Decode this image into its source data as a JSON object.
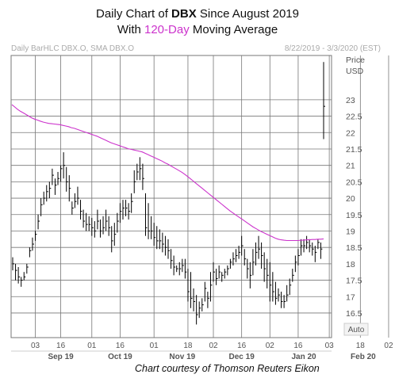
{
  "title": {
    "line1_prefix": "Daily Chart of ",
    "line1_ticker": "DBX",
    "line1_suffix": " Since August 2019",
    "line2_prefix": "With ",
    "line2_highlight": "120-Day",
    "line2_suffix": " Moving Average"
  },
  "header_left": "Daily BarHLC DBX.O, SMA DBX.O",
  "header_right": "8/22/2019 - 3/3/2020 (EST)",
  "axis_title": [
    "Price",
    "USD"
  ],
  "auto_label": "Auto",
  "credit": "Chart courtesy of Thomson Reuters Eikon",
  "colors": {
    "bars": "#000000",
    "sma": "#cc33cc",
    "grid": "#777777",
    "axis_text": "#555555",
    "header_text": "#aaaaaa",
    "highlight": "#cc33cc"
  },
  "chart_data": {
    "type": "line",
    "subtype": "ohlc-bar-with-sma",
    "ylim": [
      15.75,
      24.35
    ],
    "y_ticks": [
      16.5,
      17,
      17.5,
      18,
      18.5,
      19,
      19.5,
      20,
      20.5,
      21,
      21.5,
      22,
      22.5,
      23
    ],
    "y_tick_labels": [
      "16.5",
      "17",
      "17.5",
      "18",
      "18.5",
      "19",
      "19.5",
      "20",
      "20.5",
      "21",
      "21.5",
      "22",
      "22.5",
      "23"
    ],
    "x_day_ticks": [
      {
        "label": "03",
        "index": 8
      },
      {
        "label": "16",
        "index": 17
      },
      {
        "label": "01",
        "index": 28
      },
      {
        "label": "16",
        "index": 38
      },
      {
        "label": "01",
        "index": 50
      },
      {
        "label": "18",
        "index": 62
      },
      {
        "label": "02",
        "index": 71
      },
      {
        "label": "16",
        "index": 81
      },
      {
        "label": "02",
        "index": 91
      },
      {
        "label": "16",
        "index": 101
      },
      {
        "label": "03",
        "index": 112
      },
      {
        "label": "18",
        "index": 123
      },
      {
        "label": "02",
        "index": 133
      }
    ],
    "x_month_ticks": [
      {
        "label": "Sep 19",
        "index": 17
      },
      {
        "label": "Oct 19",
        "index": 38
      },
      {
        "label": "Nov 19",
        "index": 60
      },
      {
        "label": "Dec 19",
        "index": 81
      },
      {
        "label": "Jan 20",
        "index": 103
      },
      {
        "label": "Feb 20",
        "index": 124
      }
    ],
    "series": [
      {
        "name": "DBX.O",
        "kind": "bar-hlc",
        "high": [
          18.2,
          18.0,
          17.9,
          17.6,
          17.75,
          18.0,
          18.5,
          18.8,
          19.0,
          19.5,
          20.0,
          20.2,
          20.4,
          20.5,
          20.9,
          20.6,
          20.8,
          21.0,
          21.4,
          20.95,
          20.7,
          19.9,
          20.15,
          20.35,
          19.95,
          19.65,
          19.55,
          19.45,
          19.4,
          19.3,
          19.65,
          19.35,
          19.45,
          19.65,
          19.45,
          19.15,
          19.25,
          19.55,
          19.85,
          19.95,
          19.95,
          19.85,
          20.15,
          20.85,
          21.05,
          21.25,
          21.05,
          20.15,
          19.85,
          19.45,
          19.25,
          19.15,
          19.05,
          18.95,
          18.85,
          18.75,
          18.45,
          18.25,
          17.95,
          18.05,
          18.15,
          18.15,
          17.85,
          17.75,
          17.25,
          17.05,
          16.85,
          16.95,
          17.45,
          17.15,
          17.75,
          18.05,
          17.85,
          17.95,
          17.75,
          17.85,
          17.95,
          18.15,
          18.35,
          18.45,
          18.55,
          18.85,
          18.45,
          18.15,
          18.05,
          18.45,
          18.65,
          18.85,
          18.65,
          18.35,
          18.15,
          18.05,
          17.75,
          17.45,
          17.25,
          17.15,
          17.05,
          17.35,
          17.55,
          17.85,
          18.25,
          18.45,
          18.75,
          18.75,
          18.85,
          18.75,
          18.65,
          18.55,
          18.75,
          18.65,
          24.15
        ],
        "low": [
          17.8,
          17.5,
          17.4,
          17.3,
          17.5,
          17.7,
          18.2,
          18.4,
          18.7,
          19.05,
          19.45,
          19.8,
          19.9,
          20.0,
          20.4,
          20.1,
          20.4,
          20.5,
          20.6,
          20.2,
          19.9,
          19.5,
          19.7,
          19.8,
          19.35,
          19.1,
          19.0,
          19.0,
          18.85,
          18.8,
          19.05,
          18.8,
          18.9,
          19.0,
          18.85,
          18.35,
          18.55,
          18.95,
          19.25,
          19.35,
          19.45,
          19.35,
          19.55,
          20.15,
          20.55,
          20.55,
          20.25,
          18.85,
          18.75,
          18.75,
          18.55,
          18.45,
          18.45,
          18.35,
          18.25,
          18.15,
          17.85,
          17.65,
          17.75,
          17.65,
          17.75,
          17.55,
          16.85,
          16.65,
          16.55,
          16.15,
          16.35,
          16.55,
          16.85,
          16.65,
          16.85,
          17.45,
          17.35,
          17.55,
          17.45,
          17.55,
          17.65,
          17.85,
          17.95,
          18.05,
          18.15,
          18.25,
          17.95,
          17.55,
          17.25,
          17.65,
          17.95,
          18.15,
          17.85,
          17.45,
          17.25,
          16.85,
          16.85,
          16.75,
          16.85,
          16.65,
          16.65,
          16.85,
          17.05,
          17.45,
          17.75,
          17.95,
          18.25,
          18.35,
          18.45,
          18.35,
          18.25,
          18.05,
          18.45,
          18.15,
          21.8
        ],
        "close": [
          18.0,
          17.8,
          17.6,
          17.5,
          17.6,
          17.9,
          18.4,
          18.6,
          18.9,
          19.3,
          19.8,
          20.0,
          20.2,
          20.3,
          20.7,
          20.4,
          20.6,
          20.9,
          21.0,
          20.5,
          20.3,
          19.7,
          19.9,
          20.0,
          19.6,
          19.3,
          19.2,
          19.2,
          19.1,
          19.0,
          19.3,
          19.0,
          19.1,
          19.3,
          19.1,
          18.7,
          18.9,
          19.3,
          19.6,
          19.7,
          19.7,
          19.6,
          19.9,
          20.5,
          20.8,
          20.9,
          20.6,
          19.1,
          19.0,
          19.0,
          18.8,
          18.7,
          18.7,
          18.6,
          18.5,
          18.4,
          18.1,
          17.9,
          17.85,
          17.85,
          17.95,
          17.75,
          17.15,
          16.95,
          16.85,
          16.45,
          16.65,
          16.75,
          17.25,
          16.95,
          17.35,
          17.75,
          17.55,
          17.75,
          17.65,
          17.75,
          17.85,
          18.05,
          18.15,
          18.25,
          18.35,
          18.55,
          18.15,
          17.85,
          17.65,
          18.05,
          18.35,
          18.45,
          18.25,
          17.85,
          17.65,
          17.35,
          17.15,
          16.95,
          17.05,
          16.85,
          16.85,
          17.05,
          17.35,
          17.65,
          18.05,
          18.25,
          18.55,
          18.55,
          18.65,
          18.55,
          18.45,
          18.35,
          18.65,
          18.45,
          22.8
        ]
      },
      {
        "name": "SMA DBX.O",
        "kind": "line",
        "values": [
          22.85,
          22.78,
          22.71,
          22.65,
          22.6,
          22.55,
          22.5,
          22.45,
          22.41,
          22.38,
          22.35,
          22.32,
          22.3,
          22.28,
          22.27,
          22.26,
          22.25,
          22.24,
          22.22,
          22.2,
          22.18,
          22.15,
          22.13,
          22.1,
          22.07,
          22.04,
          22.01,
          21.98,
          21.95,
          21.92,
          21.89,
          21.85,
          21.81,
          21.77,
          21.73,
          21.69,
          21.66,
          21.63,
          21.6,
          21.57,
          21.54,
          21.51,
          21.49,
          21.47,
          21.45,
          21.43,
          21.41,
          21.37,
          21.33,
          21.29,
          21.25,
          21.21,
          21.17,
          21.13,
          21.08,
          21.04,
          20.99,
          20.94,
          20.89,
          20.84,
          20.79,
          20.73,
          20.66,
          20.59,
          20.52,
          20.45,
          20.38,
          20.31,
          20.24,
          20.17,
          20.1,
          20.03,
          19.96,
          19.89,
          19.82,
          19.75,
          19.68,
          19.61,
          19.55,
          19.49,
          19.43,
          19.37,
          19.31,
          19.25,
          19.19,
          19.13,
          19.08,
          19.03,
          18.98,
          18.94,
          18.9,
          18.86,
          18.82,
          18.78,
          18.75,
          18.73,
          18.72,
          18.71,
          18.71,
          18.71,
          18.71,
          18.71,
          18.72,
          18.72,
          18.73,
          18.73,
          18.74,
          18.74,
          18.75,
          18.75,
          18.76
        ]
      }
    ]
  }
}
